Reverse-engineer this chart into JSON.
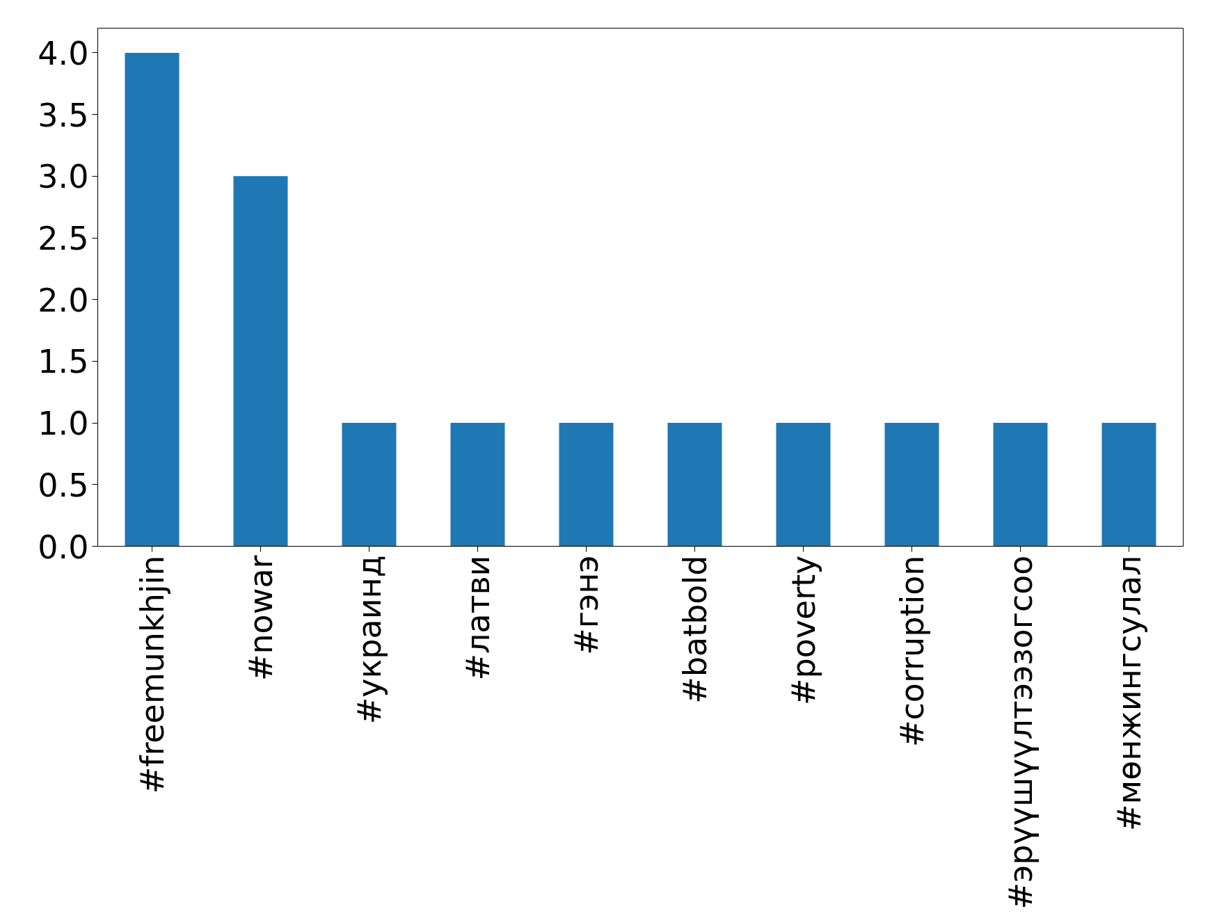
{
  "chart_data": {
    "type": "bar",
    "categories": [
      "#freemunkhjin",
      "#nowar",
      "#украинд",
      "#латви",
      "#гэнэ",
      "#batbold",
      "#poverty",
      "#corruption",
      "#эрүүшүүлтээзогсоо",
      "#мөнжингсулал"
    ],
    "values": [
      4,
      3,
      1,
      1,
      1,
      1,
      1,
      1,
      1,
      1
    ],
    "color": "#1f77b4",
    "ylim": [
      0,
      4.2
    ],
    "yticks": [
      {
        "value": 0,
        "label": "0.0"
      },
      {
        "value": 0.5,
        "label": "0.5"
      },
      {
        "value": 1,
        "label": "1.0"
      },
      {
        "value": 1.5,
        "label": "1.5"
      },
      {
        "value": 2,
        "label": "2.0"
      },
      {
        "value": 2.5,
        "label": "2.5"
      },
      {
        "value": 3,
        "label": "3.0"
      },
      {
        "value": 3.5,
        "label": "3.5"
      },
      {
        "value": 4,
        "label": "4.0"
      }
    ],
    "grid": false
  }
}
